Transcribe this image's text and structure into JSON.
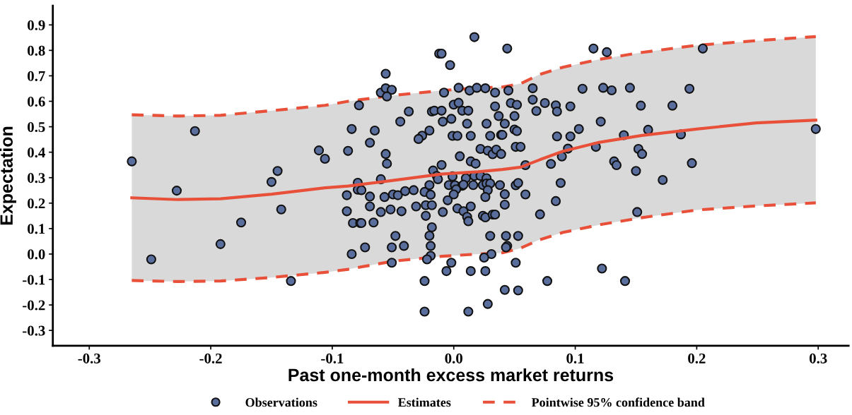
{
  "chart_data": {
    "type": "scatter",
    "xlabel": "Past one-month excess market returns",
    "ylabel": "Expectation",
    "xlim": [
      -0.33,
      0.325
    ],
    "ylim": [
      -0.36,
      0.975
    ],
    "xticks": [
      {
        "value": -0.3,
        "label": "-0.3"
      },
      {
        "value": -0.2,
        "label": "-0.2"
      },
      {
        "value": -0.1,
        "label": "-0.1"
      },
      {
        "value": 0,
        "label": "0.0"
      },
      {
        "value": 0.1,
        "label": "0.1"
      },
      {
        "value": 0.2,
        "label": "0.2"
      },
      {
        "value": 0.3,
        "label": "0.3"
      }
    ],
    "yticks": [
      {
        "value": -0.3,
        "label": "-0.3"
      },
      {
        "value": -0.2,
        "label": "-0.2"
      },
      {
        "value": -0.1,
        "label": "-0.1"
      },
      {
        "value": 0,
        "label": "0.0"
      },
      {
        "value": 0.1,
        "label": "0.1"
      },
      {
        "value": 0.2,
        "label": "0.2"
      },
      {
        "value": 0.3,
        "label": "0.3"
      },
      {
        "value": 0.4,
        "label": "0.4"
      },
      {
        "value": 0.5,
        "label": "0.5"
      },
      {
        "value": 0.6,
        "label": "0.6"
      },
      {
        "value": 0.7,
        "label": "0.7"
      },
      {
        "value": 0.8,
        "label": "0.8"
      },
      {
        "value": 0.9,
        "label": "0.9"
      }
    ],
    "grid": false,
    "legend": "bottom",
    "series": [
      {
        "name": "Observations",
        "marker": "circle",
        "color": "#5a6e9e",
        "x": [
          -0.265,
          -0.249,
          -0.228,
          -0.213,
          -0.192,
          -0.175,
          -0.15,
          -0.145,
          -0.142,
          -0.134,
          -0.111,
          -0.106,
          0.017,
          0.044,
          -0.012,
          -0.01,
          -0.003,
          -0.056,
          -0.06,
          -0.056,
          -0.051,
          -0.055,
          -0.078,
          -0.008,
          0.004,
          0.013,
          0.019,
          0.026,
          0.034,
          0.045,
          -0.037,
          -0.044,
          -0.084,
          -0.065,
          -0.069,
          -0.087,
          -0.056,
          -0.055,
          -0.018,
          -0.016,
          -0.01,
          -0.009,
          -0.002,
          0.0,
          0.004,
          0.007,
          0.012,
          0.011,
          0.027,
          0.034,
          0.037,
          0.042,
          -0.02,
          -0.026,
          -0.029,
          -0.001,
          0.003,
          0.014,
          0.03,
          0.039,
          0.04,
          0.022,
          0.028,
          0.032,
          0.035,
          0.039,
          0.005,
          -0.01,
          -0.017,
          -0.014,
          -0.013,
          0.014,
          0.018,
          -0.001,
          0.017,
          0.022,
          0.01,
          0.027,
          -0.06,
          -0.079,
          -0.079,
          -0.076,
          -0.088,
          -0.069,
          -0.057,
          -0.05,
          -0.046,
          -0.04,
          -0.033,
          -0.024,
          -0.019,
          -0.02,
          -0.004,
          0.001,
          0.007,
          0.008,
          0.016,
          0.024,
          0.027,
          0.03,
          0.038,
          0.002,
          0.0,
          0.028,
          0.026,
          0.042,
          -0.005,
          -0.088,
          -0.069,
          -0.06,
          -0.052,
          -0.043,
          -0.031,
          -0.023,
          -0.018,
          -0.009,
          0.003,
          0.008,
          0.014,
          0.011,
          0.012,
          0.024,
          0.026,
          0.032,
          0.034,
          0.042,
          -0.083,
          -0.077,
          -0.076,
          -0.066,
          -0.023,
          -0.018,
          -0.048,
          -0.02,
          0.03,
          0.043,
          -0.073,
          -0.051,
          -0.041,
          -0.019,
          0.044,
          0.043,
          -0.084,
          -0.019,
          -0.022,
          -0.051,
          -0.002,
          0.031,
          0.025,
          -0.006,
          0.014,
          0.026,
          -0.024,
          0.042,
          0.028,
          -0.024,
          0.012,
          0.115,
          0.126,
          0.205,
          0.065,
          0.106,
          0.123,
          0.13,
          0.145,
          0.194,
          0.047,
          0.052,
          0.065,
          0.075,
          0.084,
          0.085,
          0.096,
          0.068,
          0.154,
          0.18,
          0.05,
          0.121,
          0.05,
          0.052,
          0.103,
          0.085,
          0.096,
          0.14,
          0.16,
          0.187,
          0.298,
          0.051,
          0.055,
          0.094,
          0.117,
          0.152,
          0.155,
          0.089,
          0.059,
          0.08,
          0.132,
          0.134,
          0.15,
          0.196,
          0.172,
          0.051,
          0.053,
          0.088,
          0.059,
          0.084,
          0.071,
          0.151,
          0.053,
          0.051,
          0.122,
          0.077,
          0.141,
          0.053
        ],
        "values": [
          0.364,
          -0.021,
          0.249,
          0.483,
          0.039,
          0.124,
          0.283,
          0.326,
          0.175,
          -0.106,
          0.407,
          0.374,
          0.852,
          0.807,
          0.787,
          0.787,
          0.742,
          0.708,
          0.634,
          0.651,
          0.645,
          0.619,
          0.584,
          0.634,
          0.653,
          0.642,
          0.653,
          0.651,
          0.634,
          0.642,
          0.56,
          0.52,
          0.491,
          0.485,
          0.437,
          0.405,
          0.393,
          0.355,
          0.56,
          0.563,
          0.563,
          0.52,
          0.531,
          0.587,
          0.594,
          0.563,
          0.563,
          0.512,
          0.512,
          0.58,
          0.542,
          0.512,
          0.485,
          0.465,
          0.452,
          0.464,
          0.464,
          0.464,
          0.464,
          0.468,
          0.468,
          0.413,
          0.406,
          0.392,
          0.41,
          0.393,
          0.384,
          0.35,
          0.328,
          0.307,
          0.294,
          0.364,
          0.355,
          0.305,
          0.307,
          0.307,
          0.298,
          0.298,
          0.294,
          0.28,
          0.253,
          0.251,
          0.231,
          0.226,
          0.224,
          0.234,
          0.231,
          0.247,
          0.251,
          0.244,
          0.233,
          0.271,
          0.271,
          0.27,
          0.268,
          0.272,
          0.271,
          0.271,
          0.277,
          0.277,
          0.271,
          0.254,
          0.234,
          0.251,
          0.224,
          0.235,
          0.211,
          0.168,
          0.187,
          0.165,
          0.175,
          0.168,
          0.187,
          0.192,
          0.192,
          0.165,
          0.179,
          0.168,
          0.187,
          0.146,
          0.129,
          0.15,
          0.144,
          0.155,
          0.155,
          0.194,
          0.122,
          0.122,
          0.122,
          0.124,
          0.15,
          0.105,
          0.071,
          0.072,
          0.071,
          0.071,
          0.026,
          0.026,
          0.032,
          0.032,
          0.032,
          0.026,
          0.0,
          -0.007,
          -0.021,
          -0.034,
          -0.034,
          0.0,
          -0.014,
          -0.067,
          -0.067,
          -0.067,
          -0.106,
          -0.141,
          -0.196,
          -0.226,
          -0.226,
          0.807,
          0.793,
          0.807,
          0.651,
          0.649,
          0.653,
          0.643,
          0.653,
          0.649,
          0.593,
          0.586,
          0.606,
          0.593,
          0.584,
          0.56,
          0.58,
          0.562,
          0.583,
          0.583,
          0.542,
          0.52,
          0.489,
          0.483,
          0.491,
          0.462,
          0.462,
          0.467,
          0.488,
          0.47,
          0.491,
          0.421,
          0.421,
          0.414,
          0.421,
          0.413,
          0.393,
          0.383,
          0.349,
          0.354,
          0.364,
          0.349,
          0.326,
          0.357,
          0.291,
          0.27,
          0.279,
          0.279,
          0.234,
          0.208,
          0.156,
          0.165,
          0.071,
          -0.034,
          -0.057,
          -0.106,
          -0.106,
          -0.143
        ]
      },
      {
        "name": "Estimates",
        "type": "line",
        "line_style": "solid",
        "color": "#e8503a",
        "x": [
          -0.265,
          -0.228,
          -0.192,
          -0.15,
          -0.106,
          -0.087,
          -0.05,
          -0.01,
          0.02,
          0.04,
          0.055,
          0.07,
          0.09,
          0.12,
          0.155,
          0.2,
          0.249,
          0.298
        ],
        "values": [
          0.221,
          0.214,
          0.217,
          0.235,
          0.26,
          0.267,
          0.289,
          0.314,
          0.323,
          0.332,
          0.341,
          0.369,
          0.404,
          0.439,
          0.466,
          0.491,
          0.515,
          0.526
        ],
        "lower": [
          -0.104,
          -0.108,
          -0.106,
          -0.092,
          -0.072,
          -0.06,
          -0.028,
          -0.009,
          0.0,
          0.005,
          0.023,
          0.055,
          0.085,
          0.115,
          0.143,
          0.173,
          0.189,
          0.201
        ],
        "upper": [
          0.547,
          0.542,
          0.545,
          0.563,
          0.584,
          0.6,
          0.623,
          0.642,
          0.653,
          0.656,
          0.669,
          0.704,
          0.734,
          0.765,
          0.792,
          0.82,
          0.838,
          0.854
        ]
      },
      {
        "name": "Pointwise 95% confidence band",
        "type": "line",
        "line_style": "dashed",
        "color": "#e8503a",
        "x": [
          -0.265,
          -0.228,
          -0.192,
          -0.15,
          -0.106,
          -0.087,
          -0.05,
          -0.01,
          0.02,
          0.04,
          0.055,
          0.07,
          0.09,
          0.12,
          0.155,
          0.2,
          0.249,
          0.298
        ],
        "values": [
          0.547,
          0.542,
          0.545,
          0.563,
          0.584,
          0.6,
          0.623,
          0.642,
          0.653,
          0.656,
          0.669,
          0.704,
          0.734,
          0.765,
          0.792,
          0.82,
          0.838,
          0.854
        ]
      },
      {
        "type": "line",
        "line_style": "dashed",
        "color": "#e8503a",
        "x": [
          -0.265,
          -0.228,
          -0.192,
          -0.15,
          -0.106,
          -0.087,
          -0.05,
          -0.01,
          0.02,
          0.04,
          0.055,
          0.07,
          0.09,
          0.12,
          0.155,
          0.2,
          0.249,
          0.298
        ],
        "values": [
          -0.104,
          -0.108,
          -0.106,
          -0.092,
          -0.072,
          -0.06,
          -0.028,
          -0.009,
          0.0,
          0.005,
          0.023,
          0.055,
          0.085,
          0.115,
          0.143,
          0.173,
          0.189,
          0.201
        ]
      }
    ]
  }
}
